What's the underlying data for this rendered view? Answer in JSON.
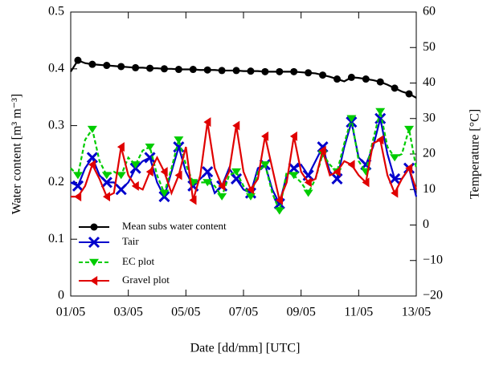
{
  "chart_data": {
    "type": "line",
    "x": [
      1,
      1.25,
      1.5,
      1.75,
      2,
      2.25,
      2.5,
      2.75,
      3,
      3.25,
      3.5,
      3.75,
      4,
      4.25,
      4.5,
      4.75,
      5,
      5.25,
      5.5,
      5.75,
      6,
      6.25,
      6.5,
      6.75,
      7,
      7.25,
      7.5,
      7.75,
      8,
      8.25,
      8.5,
      8.75,
      9,
      9.25,
      9.5,
      9.75,
      10,
      10.25,
      10.5,
      10.75,
      11,
      11.25,
      11.5,
      11.75,
      12,
      12.25,
      12.5,
      12.75,
      13
    ],
    "xlim": [
      1,
      13
    ],
    "xticks": [
      {
        "value": 1,
        "label": "01/05"
      },
      {
        "value": 3,
        "label": "03/05"
      },
      {
        "value": 5,
        "label": "05/05"
      },
      {
        "value": 7,
        "label": "07/05"
      },
      {
        "value": 9,
        "label": "09/05"
      },
      {
        "value": 11,
        "label": "11/05"
      },
      {
        "value": 13,
        "label": "13/05"
      }
    ],
    "ylim": [
      0,
      0.5
    ],
    "yticks": [
      0,
      0.1,
      0.2,
      0.3,
      0.4,
      0.5
    ],
    "y2lim": [
      -20,
      60
    ],
    "y2ticks": [
      {
        "value": -20,
        "label": "−20"
      },
      {
        "value": -10,
        "label": "−10"
      },
      0,
      10,
      20,
      30,
      40,
      50,
      60
    ],
    "xlabel": "Date [dd/mm] [UTC]",
    "ylabel": "Water content [m³ m⁻³]",
    "y2label": "Temperature [°C]",
    "legend": "lower left",
    "series": [
      {
        "name": "Mean subs water content",
        "color": "#000000",
        "marker": "circle",
        "values": [
          0.395,
          0.415,
          0.41,
          0.408,
          0.407,
          0.406,
          0.405,
          0.404,
          0.403,
          0.402,
          0.402,
          0.401,
          0.401,
          0.4,
          0.4,
          0.399,
          0.399,
          0.399,
          0.398,
          0.398,
          0.398,
          0.397,
          0.397,
          0.397,
          0.396,
          0.396,
          0.396,
          0.395,
          0.395,
          0.395,
          0.395,
          0.395,
          0.394,
          0.393,
          0.392,
          0.389,
          0.386,
          0.382,
          0.378,
          0.385,
          0.384,
          0.382,
          0.38,
          0.377,
          0.372,
          0.366,
          0.36,
          0.356,
          0.349
        ]
      },
      {
        "name": "Tair",
        "color": "#0000cc",
        "marker": "x",
        "axis": "y2",
        "values": [
          12,
          11,
          16,
          19,
          14,
          12,
          12,
          10,
          12,
          16,
          18,
          19,
          12,
          8,
          15,
          22,
          15,
          11,
          13,
          15,
          9,
          11,
          16,
          13,
          10,
          9,
          16,
          17,
          10,
          6,
          14,
          16,
          17,
          14,
          18,
          22,
          15,
          13,
          22,
          29,
          19,
          17,
          22,
          30,
          20,
          13,
          13,
          16,
          8
        ]
      },
      {
        "name": "EC plot",
        "color": "#00cc00",
        "marker": "triangle-down",
        "dash": true,
        "axis": "y2",
        "values": [
          16,
          14,
          24,
          27,
          18,
          14,
          15,
          14,
          19,
          17,
          21,
          22,
          14,
          9,
          16,
          24,
          17,
          12,
          12,
          12,
          11,
          8,
          14,
          15,
          11,
          8,
          15,
          17,
          9,
          4,
          15,
          14,
          12,
          9,
          13,
          20,
          17,
          15,
          23,
          30,
          18,
          15,
          24,
          32,
          22,
          19,
          20,
          27,
          16
        ]
      },
      {
        "name": "Gravel plot",
        "color": "#e00000",
        "marker": "triangle-left",
        "axis": "y2",
        "values": [
          8,
          8,
          11,
          17,
          13,
          8,
          9,
          22,
          14,
          11,
          10,
          15,
          19,
          15,
          9,
          14,
          22,
          7,
          14,
          29,
          16,
          11,
          15,
          28,
          15,
          10,
          13,
          25,
          16,
          7,
          12,
          25,
          15,
          12,
          13,
          21,
          14,
          15,
          18,
          17,
          14,
          12,
          23,
          24,
          14,
          9,
          13,
          16,
          10
        ]
      }
    ]
  }
}
